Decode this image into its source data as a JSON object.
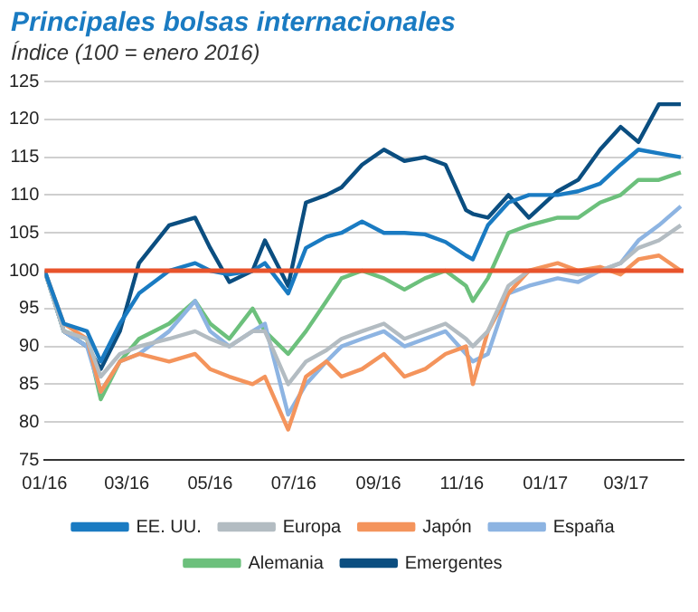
{
  "chart_data": {
    "type": "line",
    "title": "Principales bolsas internacionales",
    "subtitle": "Índice (100 = enero 2016)",
    "x": [
      "2016-01-01",
      "2016-01-15",
      "2016-02-01",
      "2016-02-11",
      "2016-02-25",
      "2016-03-10",
      "2016-04-01",
      "2016-04-20",
      "2016-05-01",
      "2016-05-15",
      "2016-06-01",
      "2016-06-10",
      "2016-06-27",
      "2016-07-10",
      "2016-07-25",
      "2016-08-05",
      "2016-08-20",
      "2016-09-05",
      "2016-09-20",
      "2016-10-05",
      "2016-10-20",
      "2016-11-04",
      "2016-11-09",
      "2016-11-20",
      "2016-12-05",
      "2016-12-20",
      "2017-01-10",
      "2017-01-25",
      "2017-02-10",
      "2017-02-25",
      "2017-03-10",
      "2017-03-25",
      "2017-04-10"
    ],
    "series": [
      {
        "name": "EE. UU.",
        "color": "#1a7bc2",
        "values": [
          100,
          93,
          92,
          88,
          93,
          97,
          100,
          101,
          100,
          99.5,
          100,
          101,
          97,
          103,
          104.5,
          105,
          106.5,
          105,
          105,
          104.8,
          103.8,
          102,
          101.5,
          106,
          109,
          110,
          110,
          110.5,
          111.5,
          114,
          116,
          115.5,
          115
        ]
      },
      {
        "name": "Europa",
        "color": "#b3bcc2",
        "values": [
          100,
          92,
          91,
          86,
          89,
          90,
          91,
          92,
          91,
          90,
          92,
          92,
          85,
          88,
          89.5,
          91,
          92,
          93,
          91,
          92,
          93,
          91,
          90,
          92,
          98,
          100,
          100,
          99.5,
          100,
          101,
          103,
          104,
          106
        ]
      },
      {
        "name": "Japón",
        "color": "#f4945c",
        "values": [
          100,
          93,
          91,
          84,
          88,
          89,
          88,
          89,
          87,
          86,
          85,
          86,
          79,
          86,
          88,
          86,
          87,
          89,
          86,
          87,
          89,
          90,
          85,
          92,
          97,
          100,
          101,
          100,
          100.5,
          99.5,
          101.5,
          102,
          100
        ]
      },
      {
        "name": "España",
        "color": "#8db4e2",
        "values": [
          100,
          92,
          90,
          84,
          88,
          89,
          92,
          96,
          92,
          90,
          92,
          93,
          81,
          85,
          88,
          90,
          91,
          92,
          90,
          91,
          92,
          89,
          88,
          89,
          97,
          98,
          99,
          98.5,
          100,
          101,
          104,
          106,
          108.5
        ]
      },
      {
        "name": "Alemania",
        "color": "#6cc07c",
        "values": [
          100,
          92,
          91,
          83,
          88,
          91,
          93,
          96,
          93,
          91,
          95,
          92,
          89,
          92,
          96,
          99,
          100,
          99,
          97.5,
          99,
          100,
          98,
          96,
          99,
          105,
          106,
          107,
          107,
          109,
          110,
          112,
          112,
          113
        ]
      },
      {
        "name": "Emergentes",
        "color": "#0b4e80",
        "values": [
          100,
          92,
          90,
          87,
          92,
          101,
          106,
          107,
          103,
          98.5,
          100,
          104,
          98,
          109,
          110,
          111,
          114,
          116,
          114.5,
          115,
          114,
          108,
          107.5,
          107,
          110,
          107,
          110.5,
          112,
          116,
          119,
          117,
          122,
          122
        ]
      }
    ],
    "ref_lines": [
      {
        "axis": "y",
        "value": 100,
        "color": "#e8532b"
      }
    ],
    "xlim": [
      "2016-01-01",
      "2017-04-12"
    ],
    "xticks": [
      {
        "value": "2016-01-01",
        "label": "01/16"
      },
      {
        "value": "2016-03-01",
        "label": "03/16"
      },
      {
        "value": "2016-05-01",
        "label": "05/16"
      },
      {
        "value": "2016-07-01",
        "label": "07/16"
      },
      {
        "value": "2016-09-01",
        "label": "09/16"
      },
      {
        "value": "2016-11-01",
        "label": "11/16"
      },
      {
        "value": "2017-01-01",
        "label": "01/17"
      },
      {
        "value": "2017-03-01",
        "label": "03/17"
      }
    ],
    "ylim": [
      75,
      125
    ],
    "yticks": [
      75,
      80,
      85,
      90,
      95,
      100,
      105,
      110,
      115,
      120,
      125
    ],
    "grid": "y",
    "legend": "bottom",
    "marker": "none",
    "line_style": "solid"
  }
}
